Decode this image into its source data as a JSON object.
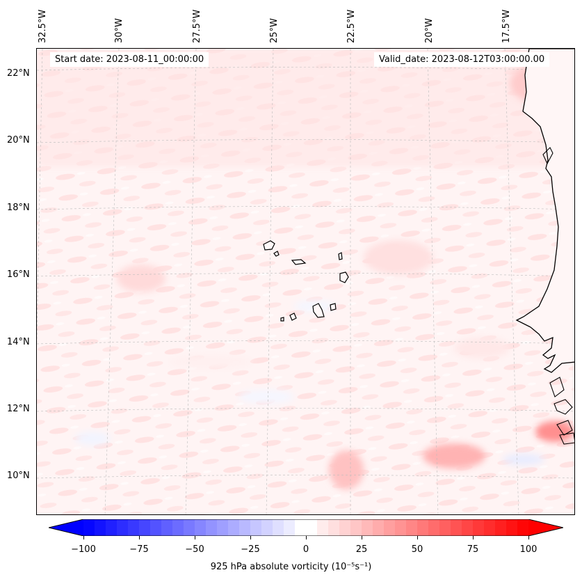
{
  "header": {
    "start_date": "Start date: 2023-08-11_00:00:00",
    "valid_date": "Valid_date: 2023-08-12T03:00:00.00"
  },
  "map": {
    "longitude_labels": [
      "32.5°W",
      "30°W",
      "27.5°W",
      "25°W",
      "22.5°W",
      "20°W",
      "17.5°W"
    ],
    "latitude_labels": [
      "22°N",
      "20°N",
      "18°N",
      "16°N",
      "14°N",
      "12°N",
      "10°N"
    ],
    "field": "925 hPa absolute vorticity",
    "region": "Cape Verde Islands and West African coast"
  },
  "colorbar": {
    "ticks": [
      "−100",
      "−75",
      "−50",
      "−25",
      "0",
      "25",
      "50",
      "75",
      "100"
    ],
    "values": [
      -100,
      -75,
      -50,
      -25,
      0,
      25,
      50,
      75,
      100
    ],
    "title": "925 hPa absolute vorticity (10⁻⁵s⁻¹)",
    "negative_color": "#0000ff",
    "positive_color": "#ff0000",
    "neutral_color": "#ffffff"
  }
}
